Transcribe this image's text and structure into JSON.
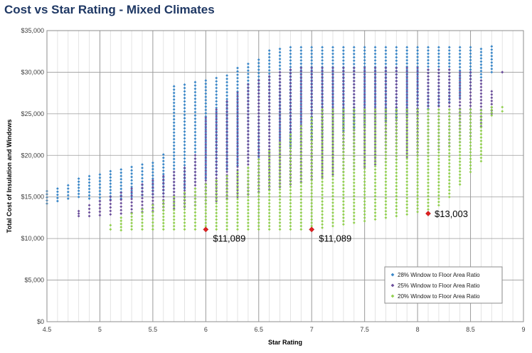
{
  "chart_data": {
    "type": "scatter",
    "title": "Cost vs Star Rating - Mixed Climates",
    "xlabel": "Star Rating",
    "ylabel": "Total Cost of Insulation and Windows",
    "xlim": [
      4.5,
      9
    ],
    "ylim": [
      0,
      35000
    ],
    "x_ticks": [
      4.5,
      5,
      5.5,
      6,
      6.5,
      7,
      7.5,
      8,
      8.5,
      9
    ],
    "x_tick_labels": [
      "4.5",
      "5",
      "5.5",
      "6",
      "6.5",
      "7",
      "7.5",
      "8",
      "8.5",
      "9"
    ],
    "y_ticks": [
      0,
      5000,
      10000,
      15000,
      20000,
      25000,
      30000,
      35000
    ],
    "y_tick_labels": [
      "$0",
      "$5,000",
      "$10,000",
      "$15,000",
      "$20,000",
      "$25,000",
      "$30,000",
      "$35,000"
    ],
    "grid": true,
    "legend_position": "bottom-right",
    "series": [
      {
        "name": "28% Window to Floor Area Ratio",
        "color": "#3a87c8",
        "marker": "diamond",
        "ranges": [
          [
            4.5,
            14200,
            15700
          ],
          [
            4.6,
            14500,
            16000
          ],
          [
            4.7,
            14800,
            16400
          ],
          [
            4.8,
            15000,
            17200
          ],
          [
            4.9,
            14800,
            17500
          ],
          [
            5.0,
            14500,
            17700
          ],
          [
            5.1,
            14700,
            18100
          ],
          [
            5.2,
            14800,
            18300
          ],
          [
            5.3,
            15000,
            18600
          ],
          [
            5.4,
            15200,
            18900
          ],
          [
            5.5,
            15300,
            19100
          ],
          [
            5.6,
            15400,
            20100
          ],
          [
            5.7,
            15600,
            28300
          ],
          [
            5.8,
            16000,
            28500
          ],
          [
            5.9,
            16800,
            28800
          ],
          [
            6.0,
            17200,
            29000
          ],
          [
            6.1,
            17700,
            29300
          ],
          [
            6.2,
            18300,
            29600
          ],
          [
            6.3,
            18800,
            30500
          ],
          [
            6.4,
            19300,
            31000
          ],
          [
            6.5,
            19800,
            31500
          ],
          [
            6.6,
            20300,
            32600
          ],
          [
            6.7,
            20700,
            32800
          ],
          [
            6.8,
            21100,
            33000
          ],
          [
            6.9,
            21500,
            33000
          ],
          [
            7.0,
            21900,
            33000
          ],
          [
            7.1,
            22300,
            33000
          ],
          [
            7.2,
            22700,
            33000
          ],
          [
            7.3,
            23000,
            33000
          ],
          [
            7.4,
            23300,
            33000
          ],
          [
            7.5,
            23600,
            33000
          ],
          [
            7.6,
            23900,
            33000
          ],
          [
            7.7,
            24200,
            33000
          ],
          [
            7.8,
            24500,
            33000
          ],
          [
            7.9,
            24800,
            33000
          ],
          [
            8.0,
            25200,
            33000
          ],
          [
            8.1,
            25600,
            33000
          ],
          [
            8.2,
            26000,
            33000
          ],
          [
            8.3,
            26400,
            33000
          ],
          [
            8.4,
            27000,
            33000
          ],
          [
            8.5,
            28000,
            33000
          ],
          [
            8.6,
            29000,
            32800
          ],
          [
            8.7,
            30000,
            33100
          ]
        ]
      },
      {
        "name": "25% Window to Floor Area Ratio",
        "color": "#6b4e9b",
        "marker": "diamond",
        "ranges": [
          [
            4.8,
            12700,
            13300
          ],
          [
            4.9,
            12700,
            14000
          ],
          [
            5.0,
            12800,
            14500
          ],
          [
            5.1,
            12900,
            15000
          ],
          [
            5.2,
            13000,
            15500
          ],
          [
            5.3,
            13100,
            16000
          ],
          [
            5.4,
            13200,
            16500
          ],
          [
            5.5,
            13300,
            17000
          ],
          [
            5.6,
            13400,
            17500
          ],
          [
            5.7,
            13600,
            18000
          ],
          [
            5.8,
            13800,
            18500
          ],
          [
            5.9,
            14000,
            20000
          ],
          [
            6.0,
            14200,
            24500
          ],
          [
            6.1,
            14500,
            25500
          ],
          [
            6.2,
            14800,
            26500
          ],
          [
            6.3,
            15000,
            27500
          ],
          [
            6.4,
            15300,
            28500
          ],
          [
            6.5,
            15600,
            29000
          ],
          [
            6.6,
            15900,
            29500
          ],
          [
            6.7,
            16200,
            30000
          ],
          [
            6.8,
            16500,
            30300
          ],
          [
            6.9,
            16800,
            30500
          ],
          [
            7.0,
            17100,
            30500
          ],
          [
            7.1,
            17400,
            30500
          ],
          [
            7.2,
            17700,
            30500
          ],
          [
            7.3,
            18000,
            30500
          ],
          [
            7.4,
            18300,
            30500
          ],
          [
            7.5,
            18600,
            30500
          ],
          [
            7.6,
            18900,
            30500
          ],
          [
            7.7,
            19200,
            30500
          ],
          [
            7.8,
            19500,
            30500
          ],
          [
            7.9,
            19800,
            30500
          ],
          [
            8.0,
            20000,
            30500
          ],
          [
            8.1,
            20300,
            30300
          ],
          [
            8.2,
            20700,
            30300
          ],
          [
            8.3,
            21100,
            30300
          ],
          [
            8.4,
            21600,
            30000
          ],
          [
            8.5,
            22300,
            30000
          ],
          [
            8.6,
            23500,
            29000
          ],
          [
            8.7,
            25000,
            27700
          ],
          [
            8.8,
            30000,
            30000
          ]
        ]
      },
      {
        "name": "20% Window to Floor Area Ratio",
        "color": "#92d050",
        "marker": "diamond",
        "ranges": [
          [
            5.1,
            11100,
            11600
          ],
          [
            5.2,
            11000,
            12500
          ],
          [
            5.3,
            11100,
            13000
          ],
          [
            5.4,
            11100,
            13500
          ],
          [
            5.5,
            11100,
            14000
          ],
          [
            5.6,
            11100,
            14500
          ],
          [
            5.7,
            11100,
            15000
          ],
          [
            5.8,
            11100,
            15500
          ],
          [
            5.9,
            11100,
            16000
          ],
          [
            6.0,
            11100,
            16500
          ],
          [
            6.1,
            11100,
            17000
          ],
          [
            6.2,
            11100,
            17500
          ],
          [
            6.3,
            11100,
            18000
          ],
          [
            6.4,
            11100,
            18500
          ],
          [
            6.5,
            11100,
            19500
          ],
          [
            6.6,
            11100,
            20500
          ],
          [
            6.7,
            11100,
            21500
          ],
          [
            6.8,
            11100,
            22500
          ],
          [
            6.9,
            11100,
            23500
          ],
          [
            7.0,
            11100,
            24500
          ],
          [
            7.1,
            11300,
            25500
          ],
          [
            7.2,
            11500,
            25500
          ],
          [
            7.3,
            11700,
            25500
          ],
          [
            7.4,
            11900,
            25500
          ],
          [
            7.5,
            12100,
            25500
          ],
          [
            7.6,
            12300,
            25500
          ],
          [
            7.7,
            12500,
            25500
          ],
          [
            7.8,
            12700,
            25500
          ],
          [
            7.9,
            12900,
            25500
          ],
          [
            8.0,
            13200,
            25500
          ],
          [
            8.1,
            13500,
            25500
          ],
          [
            8.2,
            14000,
            25500
          ],
          [
            8.3,
            15000,
            25500
          ],
          [
            8.4,
            16500,
            25500
          ],
          [
            8.5,
            18000,
            25500
          ],
          [
            8.6,
            19300,
            25400
          ],
          [
            8.7,
            24800,
            25800
          ],
          [
            8.8,
            25300,
            25800
          ]
        ]
      }
    ],
    "highlight_points": [
      {
        "x": 6.0,
        "y": 11089,
        "label": "$11,089",
        "color": "#e02020"
      },
      {
        "x": 7.0,
        "y": 11089,
        "label": "$11,089",
        "color": "#e02020"
      },
      {
        "x": 8.1,
        "y": 13003,
        "label": "$13,003",
        "color": "#e02020"
      }
    ]
  }
}
